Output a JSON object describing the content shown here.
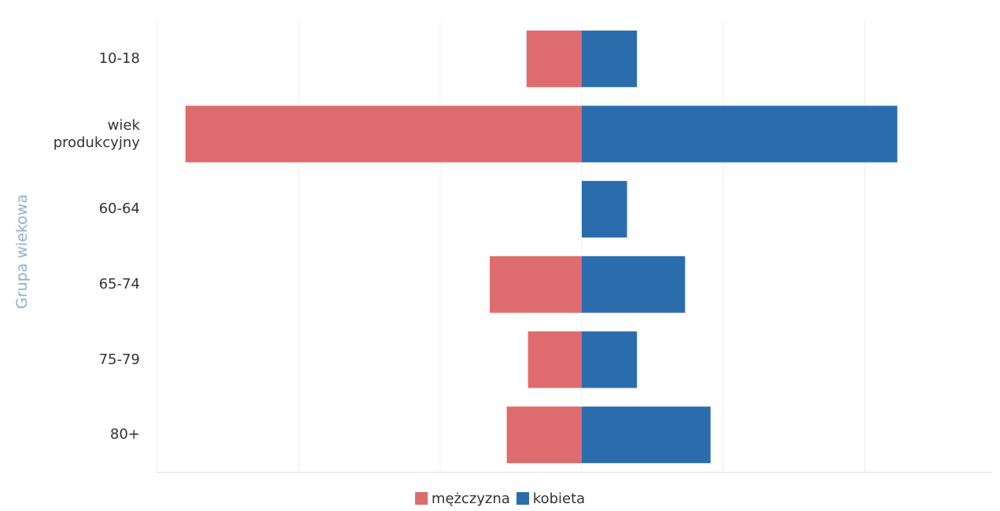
{
  "chart_data": {
    "type": "bar",
    "orientation": "horizontal",
    "y_label": "Grupa wiekowa",
    "categories": [
      "10-18",
      "wiek produkcyjny",
      "60-64",
      "65-74",
      "75-79",
      "80+"
    ],
    "series": [
      {
        "name": "mężczyzna",
        "color": "#de6b6d",
        "values": [
          -0.39,
          -2.8,
          0,
          -0.65,
          -0.38,
          -0.53
        ]
      },
      {
        "name": "kobieta",
        "color": "#2b6cad",
        "values": [
          0.39,
          2.23,
          0.32,
          0.73,
          0.39,
          0.91
        ]
      }
    ],
    "xlim": [
      -3,
      2.9
    ],
    "xticks": [
      -3,
      -2,
      -1,
      0,
      1,
      2
    ],
    "grid": true
  }
}
